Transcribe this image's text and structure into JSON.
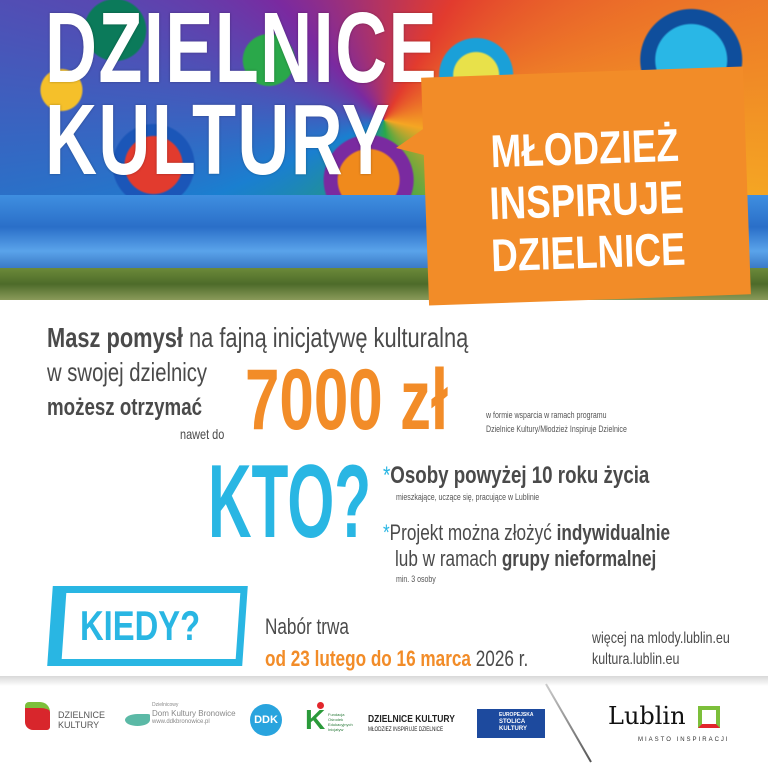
{
  "header": {
    "title_line1": "DZIELNICE",
    "title_line2": "KULTURY",
    "bubble": [
      "MŁODZIEŻ",
      "INSPIRUJE",
      "DZIELNICE"
    ]
  },
  "intro": {
    "bold1": "Masz pomysł",
    "rest1": " na fajną inicjatywę kulturalną",
    "line2": "w swojej dzielnicy",
    "bold3": "możesz otrzymać",
    "small3": "nawet do",
    "amount": "7000",
    "currency": "zł",
    "note1": "w formie wsparcia w ramach programu",
    "note2": "Dzielnice Kultury/Młodzież Inspiruje Dzielnice"
  },
  "who": {
    "heading": "KTO?",
    "asterisk": "*",
    "item1": "Osoby powyżej 10 roku życia",
    "item1_sub": "mieszkające, uczące się, pracujące w Lublinie",
    "item2_a": "Projekt można złożyć ",
    "item2_b": "indywidualnie",
    "item2_c": "lub w ramach ",
    "item2_d": "grupy nieformalnej",
    "item2_sub": "min. 3 osoby"
  },
  "when": {
    "heading": "KIEDY?",
    "line1": "Nabór trwa",
    "dates": "od 23 lutego do 16 marca",
    "year": " 2026 r."
  },
  "links": {
    "line1": "więcej na mlody.lublin.eu",
    "line2": "kultura.lublin.eu"
  },
  "footer": {
    "dk1": "DZIELNICE",
    "dk2": "KULTURY",
    "ddkb1": "Dzielnicowy",
    "ddkb2": "Dom Kultury Bronowice",
    "ddkb3": "www.ddkbronowice.pl",
    "ddk": "DDK",
    "fund": "Fundacja Ośrodek Edukacyjnych Inicjatyw",
    "mid1": "DZIELNICE KULTURY",
    "mid2": "MŁODZIEŻ INSPIRUJE DZIELNICE",
    "esk": [
      "EUROPEJSKA",
      "STOLICA",
      "KULTURY"
    ],
    "lublin": "Lublin",
    "lublin_sub": "MIASTO INSPIRACJI"
  },
  "colors": {
    "orange": "#f28c28",
    "blue": "#29b6e3",
    "text": "#4a4a4a"
  }
}
